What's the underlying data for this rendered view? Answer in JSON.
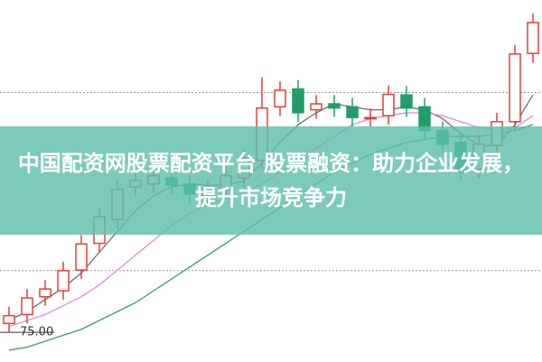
{
  "chart_data": {
    "type": "candlestick",
    "title": "中国配资网股票配资平台 股票融资：助力企业发展，提升市场竞争力",
    "ylim": [
      70,
      131
    ],
    "yticks": [
      {
        "value": 75,
        "label": "75.00"
      }
    ],
    "grid_lines": [
      85.4,
      115.4
    ],
    "up_color": "#e0413a",
    "down_color": "#1f9e6a",
    "open": [
      76.5,
      78.0,
      81.0,
      82.0,
      85.5,
      90.0,
      94.0,
      99.5,
      100.0,
      101.0,
      100.0,
      98.0,
      99.0,
      101.0,
      104.0,
      113.0,
      116.0,
      112.5,
      113.5,
      113.0,
      111.0,
      111.5,
      115.0,
      113.0,
      109.0,
      107.0,
      102.5,
      106.5,
      110.5,
      122.0
    ],
    "high": [
      79.3,
      82.3,
      83.8,
      86.9,
      91.4,
      96.0,
      100.6,
      102.1,
      102.9,
      102.5,
      101.5,
      100.6,
      102.9,
      105.9,
      118.0,
      117.3,
      117.5,
      115.0,
      115.0,
      114.5,
      112.7,
      116.6,
      116.5,
      114.5,
      110.5,
      108.5,
      108.2,
      112.0,
      123.4,
      128.7
    ],
    "low": [
      75.0,
      76.5,
      79.5,
      80.5,
      84.0,
      88.4,
      92.5,
      98.0,
      98.5,
      98.3,
      96.8,
      96.5,
      97.5,
      99.5,
      102.5,
      111.5,
      110.5,
      111.0,
      111.3,
      109.7,
      109.7,
      110.0,
      111.3,
      107.5,
      105.2,
      100.6,
      101.0,
      105.0,
      109.0,
      120.4
    ],
    "close": [
      77.8,
      80.8,
      82.3,
      85.4,
      89.9,
      94.5,
      99.1,
      100.6,
      101.4,
      99.8,
      98.3,
      99.1,
      101.4,
      104.4,
      112.8,
      115.8,
      112.0,
      113.5,
      112.8,
      111.2,
      111.2,
      115.1,
      112.8,
      109.0,
      106.7,
      102.1,
      106.7,
      110.5,
      121.9,
      127.2
    ],
    "ma_series": [
      {
        "color": "#6d6d6d",
        "values": [
          77,
          78.5,
          80.5,
          82.5,
          85,
          88.5,
          92,
          95.5,
          98,
          99.5,
          100,
          99.8,
          99.8,
          100.5,
          103.5,
          107,
          110,
          112,
          113.5,
          113,
          112.5,
          112.5,
          113,
          112.5,
          111,
          108.5,
          106.5,
          106.5,
          110,
          115
        ]
      },
      {
        "color": "#e38ad8",
        "values": [
          76,
          77,
          78,
          79.5,
          81,
          83,
          85.5,
          88,
          90.5,
          93,
          95,
          96.5,
          97.5,
          98.5,
          100,
          102,
          104,
          106,
          108,
          110,
          111,
          111.5,
          112,
          112,
          111.5,
          110.5,
          109.5,
          109,
          109.5,
          111.5
        ]
      },
      {
        "color": "#3aa05a",
        "values": [
          72,
          72.5,
          73.5,
          74.5,
          75.5,
          77,
          78.5,
          80,
          82,
          84,
          86,
          88,
          90,
          92,
          94,
          96,
          98,
          100,
          102,
          103.5,
          105,
          106,
          107,
          107.5,
          108,
          108,
          108,
          108.5,
          109,
          110
        ]
      }
    ]
  }
}
